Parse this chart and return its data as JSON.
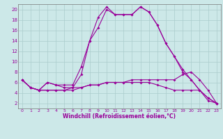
{
  "xlabel": "Windchill (Refroidissement éolien,°C)",
  "background_color": "#cce8e8",
  "grid_color": "#aacccc",
  "line_color": "#990099",
  "x_ticks": [
    0,
    1,
    2,
    3,
    4,
    5,
    6,
    7,
    8,
    9,
    10,
    11,
    12,
    13,
    14,
    15,
    16,
    17,
    18,
    19,
    20,
    21,
    22,
    23
  ],
  "y_ticks": [
    2,
    4,
    6,
    8,
    10,
    12,
    14,
    16,
    18,
    20
  ],
  "ylim": [
    1.0,
    21.0
  ],
  "xlim": [
    -0.5,
    23.5
  ],
  "curves": [
    [
      6.5,
      5.0,
      4.5,
      6.0,
      5.5,
      5.5,
      5.5,
      9.0,
      14.0,
      18.5,
      20.5,
      19.0,
      19.0,
      19.0,
      20.5,
      19.5,
      17.0,
      13.5,
      11.0,
      8.5,
      6.5,
      4.5,
      3.0,
      2.0
    ],
    [
      6.5,
      5.0,
      4.5,
      6.0,
      5.5,
      5.0,
      5.0,
      7.5,
      14.0,
      16.5,
      20.0,
      19.0,
      19.0,
      19.0,
      20.5,
      19.5,
      17.0,
      13.5,
      11.0,
      8.0,
      6.5,
      4.5,
      2.5,
      2.0
    ],
    [
      6.5,
      5.0,
      4.5,
      4.5,
      4.5,
      4.5,
      4.5,
      5.0,
      5.5,
      5.5,
      6.0,
      6.0,
      6.0,
      6.5,
      6.5,
      6.5,
      6.5,
      6.5,
      6.5,
      7.5,
      8.0,
      6.5,
      4.5,
      2.0
    ],
    [
      6.5,
      5.0,
      4.5,
      4.5,
      4.5,
      4.5,
      5.0,
      5.0,
      5.5,
      5.5,
      6.0,
      6.0,
      6.0,
      6.0,
      6.0,
      6.0,
      5.5,
      5.0,
      4.5,
      4.5,
      4.5,
      4.5,
      3.0,
      2.0
    ]
  ],
  "tick_fontsize": 4.5,
  "xlabel_fontsize": 5.5,
  "marker": "D",
  "markersize": 2.0,
  "linewidth": 0.8
}
